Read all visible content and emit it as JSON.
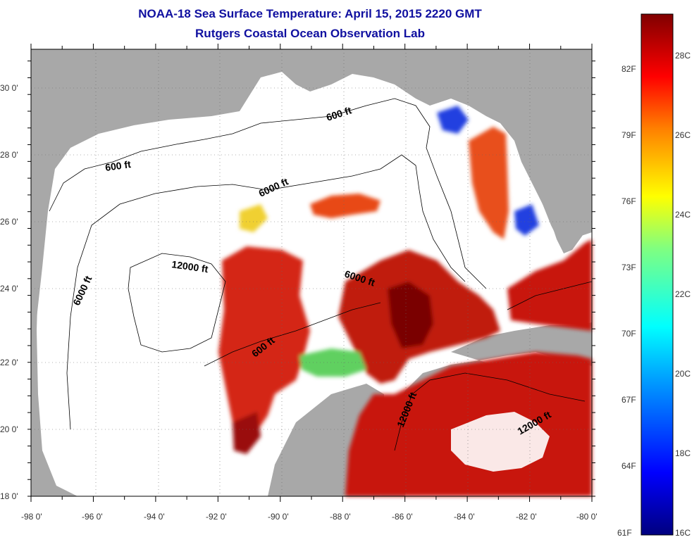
{
  "header": {
    "title": "NOAA-18 Sea Surface Temperature:  April 15, 2015 2220 GMT",
    "subtitle": "Rutgers Coastal Ocean Observation Lab"
  },
  "axes": {
    "x_ticks": [
      "-98 0'",
      "-96 0'",
      "-94 0'",
      "-92 0'",
      "-90 0'",
      "-88 0'",
      "-86 0'",
      "-84 0'",
      "-82 0'",
      "-80 0'"
    ],
    "y_ticks": [
      "30 0'",
      "28 0'",
      "26 0'",
      "24 0'",
      "22 0'",
      "20 0'",
      "18 0'"
    ]
  },
  "contours": [
    {
      "label": "600 ft"
    },
    {
      "label": "600 ft"
    },
    {
      "label": "6000 ft"
    },
    {
      "label": "6000 ft"
    },
    {
      "label": "6000 ft"
    },
    {
      "label": "12000 ft"
    },
    {
      "label": "600 ft"
    },
    {
      "label": "12000 ft"
    },
    {
      "label": "12000 ft"
    }
  ],
  "colorbar": {
    "fahrenheit": [
      "82F",
      "79F",
      "76F",
      "73F",
      "70F",
      "67F",
      "64F",
      "61F"
    ],
    "celsius": [
      "28C",
      "26C",
      "24C",
      "22C",
      "20C",
      "18C",
      "16C"
    ]
  },
  "colors": {
    "land": "#a8a8a8",
    "cloud": "#ffffff",
    "title": "#1010a0",
    "warm": "#c81810",
    "hot": "#7a0000"
  }
}
